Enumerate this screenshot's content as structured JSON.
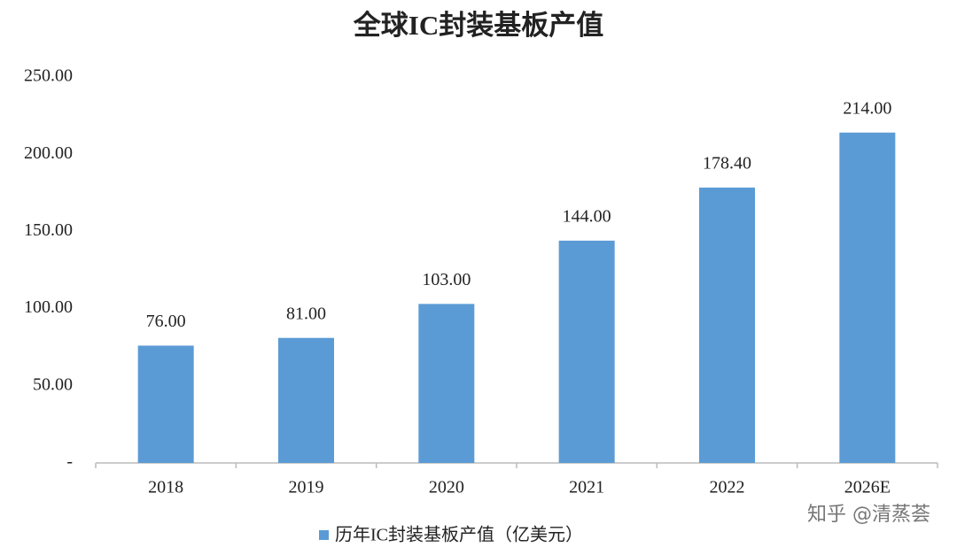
{
  "chart_data": {
    "type": "bar",
    "title": "全球IC封装基板产值",
    "categories": [
      "2018",
      "2019",
      "2020",
      "2021",
      "2022",
      "2026E"
    ],
    "series": [
      {
        "name": "历年IC封装基板产值（亿美元）",
        "color": "#5b9bd5",
        "values": [
          76,
          81,
          103,
          144,
          178.4,
          214
        ],
        "value_labels": [
          "76.00",
          "81.00",
          "103.00",
          "144.00",
          "178.40",
          "214.00"
        ]
      }
    ],
    "ylim": [
      0,
      250
    ],
    "yticks": [
      {
        "value": 0,
        "label": "-"
      },
      {
        "value": 50,
        "label": "50.00"
      },
      {
        "value": 100,
        "label": "100.00"
      },
      {
        "value": 150,
        "label": "150.00"
      },
      {
        "value": 200,
        "label": "200.00"
      },
      {
        "value": 250,
        "label": "250.00"
      }
    ],
    "grid": false,
    "legend": "bottom",
    "watermark": "知乎 @清蒸荟"
  }
}
